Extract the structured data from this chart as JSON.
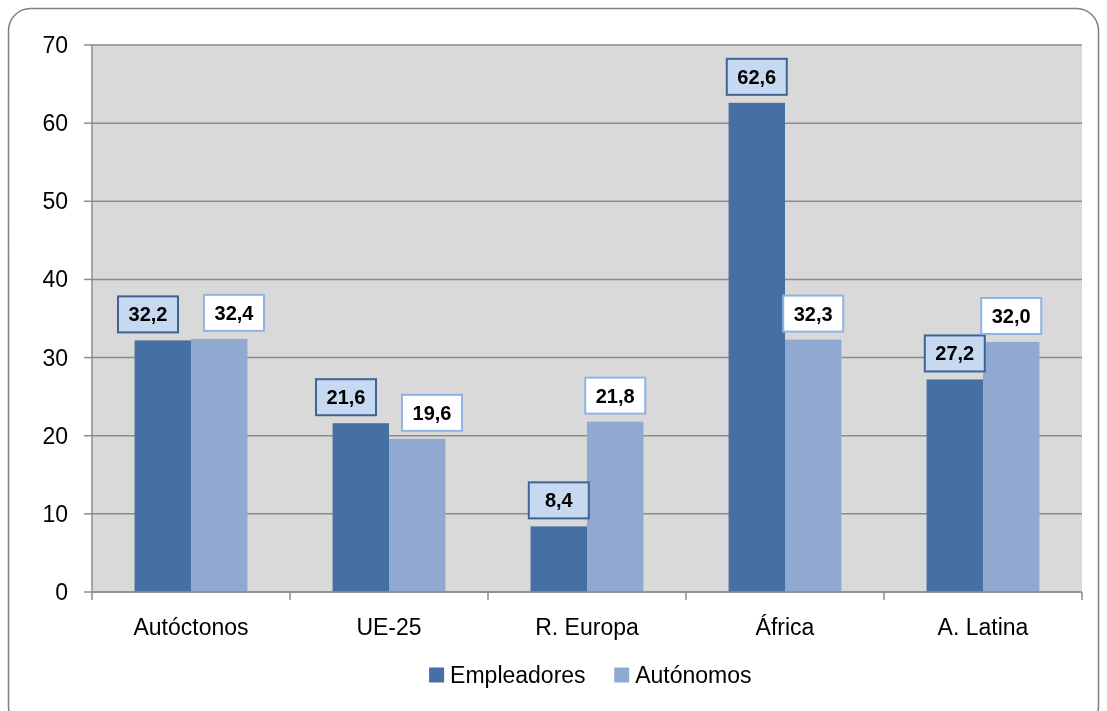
{
  "chart_data": {
    "type": "bar",
    "categories": [
      "Autóctonos",
      "UE-25",
      "R. Europa",
      "África",
      "A. Latina"
    ],
    "series": [
      {
        "name": "Empleadores",
        "color": "#4470a3",
        "values": [
          32.2,
          21.6,
          8.4,
          62.6,
          27.2
        ],
        "value_labels": [
          "32,2",
          "21,6",
          "8,4",
          "62,6",
          "27,2"
        ]
      },
      {
        "name": "Autónomos",
        "color": "#91a9d0",
        "values": [
          32.4,
          19.6,
          21.8,
          32.3,
          32.0
        ],
        "value_labels": [
          "32,4",
          "19,6",
          "21,8",
          "32,3",
          "32,0"
        ]
      }
    ],
    "ylim": [
      0,
      70
    ],
    "yticks": [
      0,
      10,
      20,
      30,
      40,
      50,
      60,
      70
    ],
    "grid": "y",
    "legend": "bottom"
  }
}
